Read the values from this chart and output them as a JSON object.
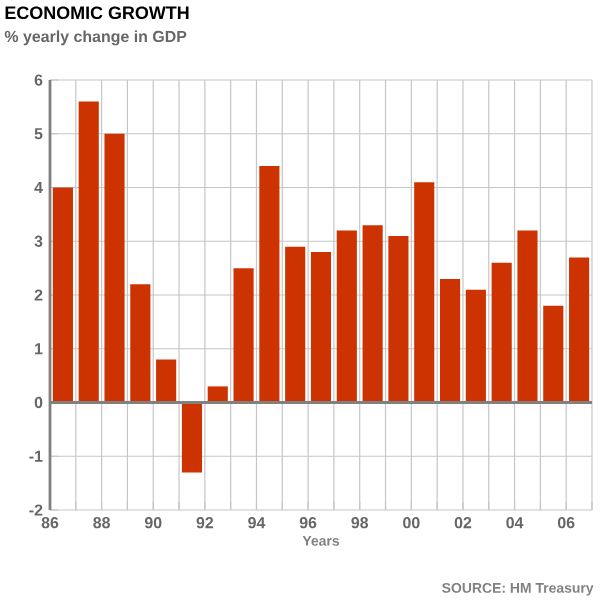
{
  "chart_data": {
    "type": "histogram",
    "title": "ECONOMIC GROWTH",
    "subtitle": "% yearly change in GDP",
    "xlabel": "Years",
    "annotations": [
      "SOURCE: HM Treasury"
    ],
    "bins": [
      1986,
      1987,
      1988,
      1989,
      1990,
      1991,
      1992,
      1993,
      1994,
      1995,
      1996,
      1997,
      1998,
      1999,
      2000,
      2001,
      2002,
      2003,
      2004,
      2005,
      2006,
      2007
    ],
    "values": [
      4.0,
      5.6,
      5.0,
      2.2,
      0.8,
      -1.3,
      0.3,
      2.5,
      4.4,
      2.9,
      2.8,
      3.2,
      3.3,
      3.1,
      4.1,
      2.3,
      2.1,
      2.6,
      3.2,
      1.8,
      2.7
    ],
    "color": "#cc3300",
    "xlim": [
      1986,
      2007
    ],
    "xticks": [
      {
        "value": 1986,
        "label": "86"
      },
      {
        "value": 1987,
        "label": null
      },
      {
        "value": 1988,
        "label": "88"
      },
      {
        "value": 1989,
        "label": null
      },
      {
        "value": 1990,
        "label": "90"
      },
      {
        "value": 1991,
        "label": null
      },
      {
        "value": 1992,
        "label": "92"
      },
      {
        "value": 1993,
        "label": null
      },
      {
        "value": 1994,
        "label": "94"
      },
      {
        "value": 1995,
        "label": null
      },
      {
        "value": 1996,
        "label": "96"
      },
      {
        "value": 1997,
        "label": null
      },
      {
        "value": 1998,
        "label": "98"
      },
      {
        "value": 1999,
        "label": null
      },
      {
        "value": 2000,
        "label": "00"
      },
      {
        "value": 2001,
        "label": null
      },
      {
        "value": 2002,
        "label": "02"
      },
      {
        "value": 2003,
        "label": null
      },
      {
        "value": 2004,
        "label": "04"
      },
      {
        "value": 2005,
        "label": null
      },
      {
        "value": 2006,
        "label": "06"
      },
      {
        "value": 2007,
        "label": null
      }
    ],
    "ylim": [
      -2,
      6
    ],
    "yticks": [
      -2,
      -1,
      0,
      1,
      2,
      3,
      4,
      5,
      6
    ],
    "grid": true
  }
}
